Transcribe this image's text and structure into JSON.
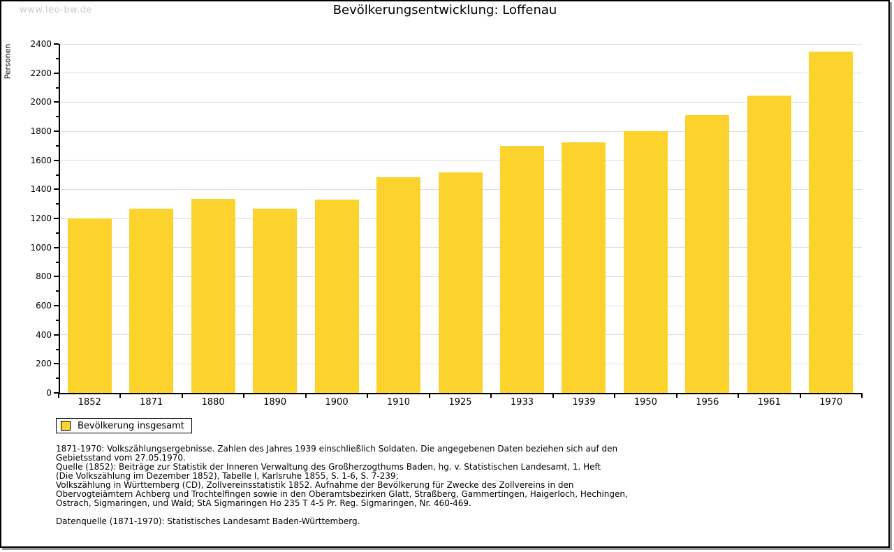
{
  "watermark": "www.leo-bw.de",
  "title": "Bevölkerungsentwicklung: Loffenau",
  "chart_data": {
    "type": "bar",
    "title": "Bevölkerungsentwicklung: Loffenau",
    "xlabel": "",
    "ylabel": "Personen",
    "categories": [
      "1852",
      "1871",
      "1880",
      "1890",
      "1900",
      "1910",
      "1925",
      "1933",
      "1939",
      "1950",
      "1956",
      "1961",
      "1970"
    ],
    "values": [
      1199,
      1265,
      1335,
      1267,
      1330,
      1485,
      1515,
      1697,
      1722,
      1798,
      1910,
      2045,
      2345
    ],
    "series_name": "Bevölkerung insgesamt",
    "ylim": [
      0,
      2400
    ],
    "ytick_major_step": 200,
    "ytick_minor_step": 100,
    "grid": true,
    "legend_position": "bottom-left",
    "bar_color": "#FCD32D",
    "gridline_color": "#dddddd",
    "axis_color": "#000000"
  },
  "legend": {
    "label": "Bevölkerung insgesamt",
    "swatch_color": "#FCD32D"
  },
  "footnotes": {
    "lines": [
      "1871-1970: Volkszählungsergebnisse. Zahlen des Jahres 1939 einschließlich Soldaten. Die angegebenen Daten beziehen sich auf den",
      "Gebietsstand vom 27.05.1970.",
      "Quelle (1852): Beiträge zur Statistik der Inneren Verwaltung des Großherzogthums Baden, hg. v. Statistischen Landesamt, 1. Heft",
      "(Die Volkszählung im Dezember 1852), Tabelle I, Karlsruhe 1855, S. 1-6, S. 7-239;",
      "Volkszählung in Württemberg (CD), Zollvereinsstatistik 1852. Aufnahme der Bevölkerung für Zwecke des Zollvereins in den",
      "Obervogteiämtern Achberg und Trochtelfingen sowie in den Oberamtsbezirken Glatt, Straßberg, Gammertingen, Haigerloch, Hechingen,",
      "Ostrach, Sigmaringen, und Wald; StA Sigmaringen Ho 235 T 4-5 Pr. Reg. Sigmaringen, Nr. 460-469."
    ],
    "datenquelle": "Datenquelle (1871-1970): Statistisches Landesamt Baden-Württemberg."
  }
}
